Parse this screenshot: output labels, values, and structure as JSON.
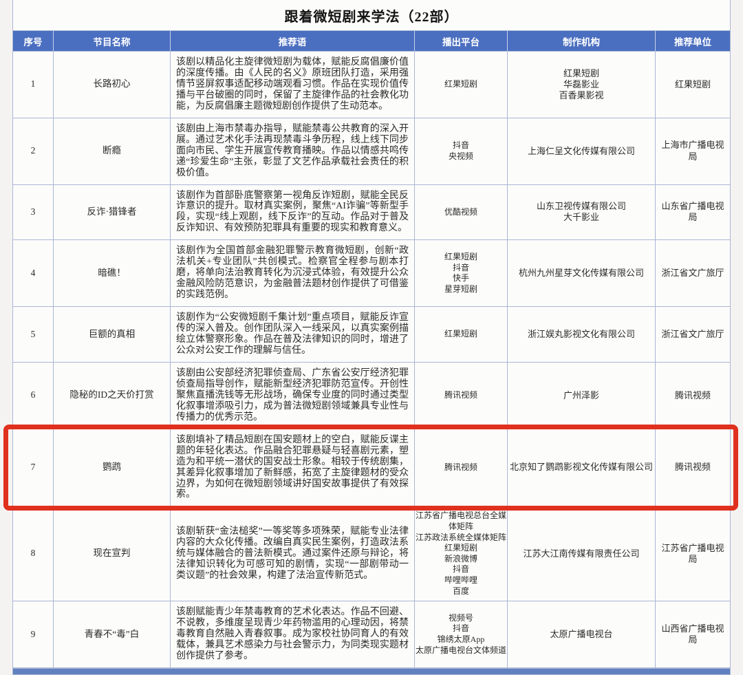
{
  "page": {
    "title": "跟着微短剧来学法（22部）"
  },
  "colors": {
    "header_bg": "#4b6fc0",
    "grid": "#a9b6d3",
    "highlight_border": "#e0301e"
  },
  "table": {
    "columns": [
      "序号",
      "节目名称",
      "推荐语",
      "播出平台",
      "制作机构",
      "推荐单位"
    ],
    "rows": [
      {
        "no": "1",
        "name": "长路初心",
        "blurb": "该剧以精品化主旋律微短剧为载体，赋能反腐倡廉价值的深度传播。由《人民的名义》原班团队打造，采用强情节竖屏叙事适配移动端观看习惯。作品在实现价值传播与平台破圈的同时，保留了主旋律作品的社会教化功能，为反腐倡廉主题微短剧创作提供了生动范本。",
        "platforms": [
          "红果短剧"
        ],
        "producers": [
          "红果短剧",
          "华磊影业",
          "百香果影视"
        ],
        "recommender": "红果短剧",
        "highlighted": false
      },
      {
        "no": "2",
        "name": "断瘾",
        "blurb": "该剧由上海市禁毒办指导，赋能禁毒公共教育的深入开展。通过艺术化手法再现禁毒斗争历程，线上线下同步面向市民、学生开展宣传教育播映。作品以情感共鸣传递“珍爱生命”主张，彰显了文艺作品承载社会责任的积极价值。",
        "platforms": [
          "抖音",
          "央视频"
        ],
        "producers": [
          "上海仁呈文化传媒有限公司"
        ],
        "recommender": "上海市广播电视局",
        "highlighted": false
      },
      {
        "no": "3",
        "name": "反诈·猎锋者",
        "blurb": "该剧作为首部卧底警察第一视角反诈短剧，赋能全民反诈意识的提升。取材真实案例，聚焦“AI诈骗”等新型手段，实现“线上观剧，线下反诈”的互动。作品对于普及反诈知识、有效预防犯罪具有重要的现实和教育意义。",
        "platforms": [
          "优酷视频"
        ],
        "producers": [
          "山东卫视传媒有限公司",
          "大千影业"
        ],
        "recommender": "山东省广播电视局",
        "highlighted": false
      },
      {
        "no": "4",
        "name": "暗礁！",
        "blurb": "该剧作为全国首部金融犯罪警示教育微短剧，创新“政法机关+专业团队”共创模式。检察官全程参与剧本打磨，将单向法治教育转化为沉浸式体验，有效提升公众金融风险防范意识，为金融普法题材创作提供了可借鉴的实践范例。",
        "platforms": [
          "红果短剧",
          "抖音",
          "快手",
          "星芽短剧"
        ],
        "producers": [
          "杭州九州星芽文化传媒有限公司"
        ],
        "recommender": "浙江省文广旅厅",
        "highlighted": false
      },
      {
        "no": "5",
        "name": "巨额的真相",
        "blurb": "该剧作为“公安微短剧千集计划”重点项目，赋能反诈宣传的深入普及。创作团队深入一线采风，以真实案例描绘立体警察形象。作品在普及法律知识的同时，增进了公众对公安工作的理解与信任。",
        "platforms": [
          "红果短剧"
        ],
        "producers": [
          "浙江娱丸影视文化有限公司"
        ],
        "recommender": "浙江省文广旅厅",
        "highlighted": false
      },
      {
        "no": "6",
        "name": "隐秘的ID之天价打赏",
        "blurb": "该剧由公安部经济犯罪侦查局、广东省公安厅经济犯罪侦查局指导创作，赋能新型经济犯罪防范宣传。开创性聚焦直播洗钱等无形战场，确保专业度的同时通过类型化叙事增添吸引力，成为普法微短剧领域兼具专业性与传播力的优秀示范。",
        "platforms": [
          "腾讯视频"
        ],
        "producers": [
          "广州泽影"
        ],
        "recommender": "腾讯视频",
        "highlighted": false
      },
      {
        "no": "7",
        "name": "鹦鹉",
        "blurb": "该剧填补了精品短剧在国安题材上的空白，赋能反谍主题的年轻化表达。作品融合犯罪悬疑与轻喜剧元素，塑造为和平统一潜伏的国安战士形象。相较于传统剧集，其差异化叙事增加了新鲜感，拓宽了主旋律题材的受众边界，为如何在微短剧领域讲好国安故事提供了有效探索。",
        "platforms": [
          "腾讯视频"
        ],
        "producers": [
          "北京知了鹦鹉影视文化传媒有限公司"
        ],
        "recommender": "腾讯视频",
        "highlighted": true
      },
      {
        "no": "8",
        "name": "现在宣判",
        "blurb": "该剧斩获“金法槌奖”一等奖等多项殊荣，赋能专业法律内容的大众化传播。改编自真实民生案例，打造政法系统与媒体融合的普法新模式。通过案件还原与辩论，将法律知识转化为可感可知的剧情，实现“一部剧带动一类议题”的社会效果，构建了法治宣传新范式。",
        "platforms": [
          "江苏省广播电视总台全媒体矩阵",
          "江苏政法系统全媒体矩阵",
          "红果短剧",
          "新浪微博",
          "抖音",
          "哔哩哔哩",
          "百度"
        ],
        "producers": [
          "江苏大江南传媒有限责任公司"
        ],
        "recommender": "江苏省广播电视局",
        "highlighted": false
      },
      {
        "no": "9",
        "name": "青春不“毒”白",
        "blurb": "该剧赋能青少年禁毒教育的艺术化表达。作品不回避、不说教，多维度呈现青少年药物滥用的心理动因，将禁毒教育自然融入青春叙事。成为家校社协同育人的有效载体，兼具艺术感染力与社会警示力，为同类现实题材创作提供了参考。",
        "platforms": [
          "视频号",
          "抖音",
          "锦绣太原App",
          "太原广播电视台文体频道"
        ],
        "producers": [
          "太原广播电视台"
        ],
        "recommender": "山西省广播电视局",
        "highlighted": false
      }
    ]
  }
}
